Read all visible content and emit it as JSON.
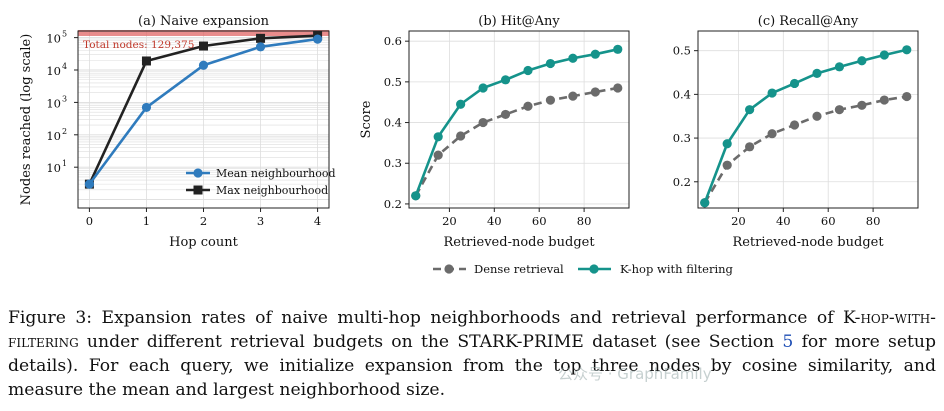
{
  "colors": {
    "mean": "#2f7bbd",
    "max": "#222222",
    "dense": "#6b6b6b",
    "khop": "#15938b",
    "total_band": "#e06666",
    "total_text": "#c0392b",
    "grid": "#dddddd"
  },
  "chart_data": [
    {
      "type": "line",
      "title": "(a) Naive expansion",
      "xlabel": "Hop count",
      "ylabel": "Nodes reached (log scale)",
      "yscale": "log",
      "xlim": [
        -0.2,
        4.2
      ],
      "ylim": [
        0.55,
        160000
      ],
      "xticks": [
        0,
        1,
        2,
        3,
        4
      ],
      "yticks": [
        10,
        100,
        1000,
        10000,
        100000
      ],
      "ytick_labels": [
        [
          "10",
          "1"
        ],
        [
          "10",
          "2"
        ],
        [
          "10",
          "3"
        ],
        [
          "10",
          "4"
        ],
        [
          "10",
          "5"
        ]
      ],
      "grid": true,
      "legend": "lower-right",
      "annotation": {
        "text": "Total nodes: 129,375",
        "y": 129375
      },
      "series": [
        {
          "name": "Mean neighbourhood",
          "marker": "circle",
          "x": [
            0,
            1,
            2,
            3,
            4
          ],
          "y": [
            3,
            700,
            14000,
            52000,
            90000
          ]
        },
        {
          "name": "Max neighbourhood",
          "marker": "square",
          "x": [
            0,
            1,
            2,
            3,
            4
          ],
          "y": [
            3,
            19000,
            55000,
            95000,
            115000
          ]
        }
      ]
    },
    {
      "type": "line",
      "title": "(b) Hit@Any",
      "xlabel": "Retrieved-node budget",
      "ylabel": "Score",
      "xlim": [
        2,
        100
      ],
      "ylim": [
        0.19,
        0.625
      ],
      "xticks": [
        20,
        40,
        60,
        80
      ],
      "yticks": [
        0.2,
        0.3,
        0.4,
        0.5,
        0.6
      ],
      "grid": true,
      "series": [
        {
          "name": "Dense retrieval",
          "style": "dashed",
          "x": [
            5,
            15,
            25,
            35,
            45,
            55,
            65,
            75,
            85,
            95
          ],
          "y": [
            0.22,
            0.32,
            0.367,
            0.4,
            0.42,
            0.44,
            0.455,
            0.465,
            0.475,
            0.485
          ]
        },
        {
          "name": "K-hop with filtering",
          "style": "solid",
          "x": [
            5,
            15,
            25,
            35,
            45,
            55,
            65,
            75,
            85,
            95
          ],
          "y": [
            0.22,
            0.365,
            0.445,
            0.485,
            0.505,
            0.528,
            0.545,
            0.558,
            0.568,
            0.58
          ]
        }
      ]
    },
    {
      "type": "line",
      "title": "(c) Recall@Any",
      "xlabel": "Retrieved-node budget",
      "xlim": [
        2,
        100
      ],
      "ylim": [
        0.14,
        0.545
      ],
      "xticks": [
        20,
        40,
        60,
        80
      ],
      "yticks": [
        0.2,
        0.3,
        0.4,
        0.5
      ],
      "grid": true,
      "series": [
        {
          "name": "Dense retrieval",
          "style": "dashed",
          "x": [
            5,
            15,
            25,
            35,
            45,
            55,
            65,
            75,
            85,
            95
          ],
          "y": [
            0.152,
            0.238,
            0.28,
            0.31,
            0.33,
            0.35,
            0.365,
            0.375,
            0.387,
            0.395
          ]
        },
        {
          "name": "K-hop with filtering",
          "style": "solid",
          "x": [
            5,
            15,
            25,
            35,
            45,
            55,
            65,
            75,
            85,
            95
          ],
          "y": [
            0.152,
            0.287,
            0.365,
            0.403,
            0.425,
            0.448,
            0.463,
            0.477,
            0.49,
            0.502
          ]
        }
      ]
    }
  ],
  "shared_legend": [
    "Dense retrieval",
    "K-hop with filtering"
  ],
  "caption": {
    "prefix": "Figure 3: Expansion rates of naive multi-hop neighborhoods and retrieval performance of K-",
    "smallcaps": "hop-with-filtering",
    "middle": " under different retrieval budgets on the STARK-PRIME dataset (see Section ",
    "ref": "5",
    "suffix": " for more setup details). For each query, we initialize expansion from the top three nodes by cosine similarity, and measure the mean and largest neighborhood size."
  },
  "watermark": "公众号 · GraphFamily"
}
